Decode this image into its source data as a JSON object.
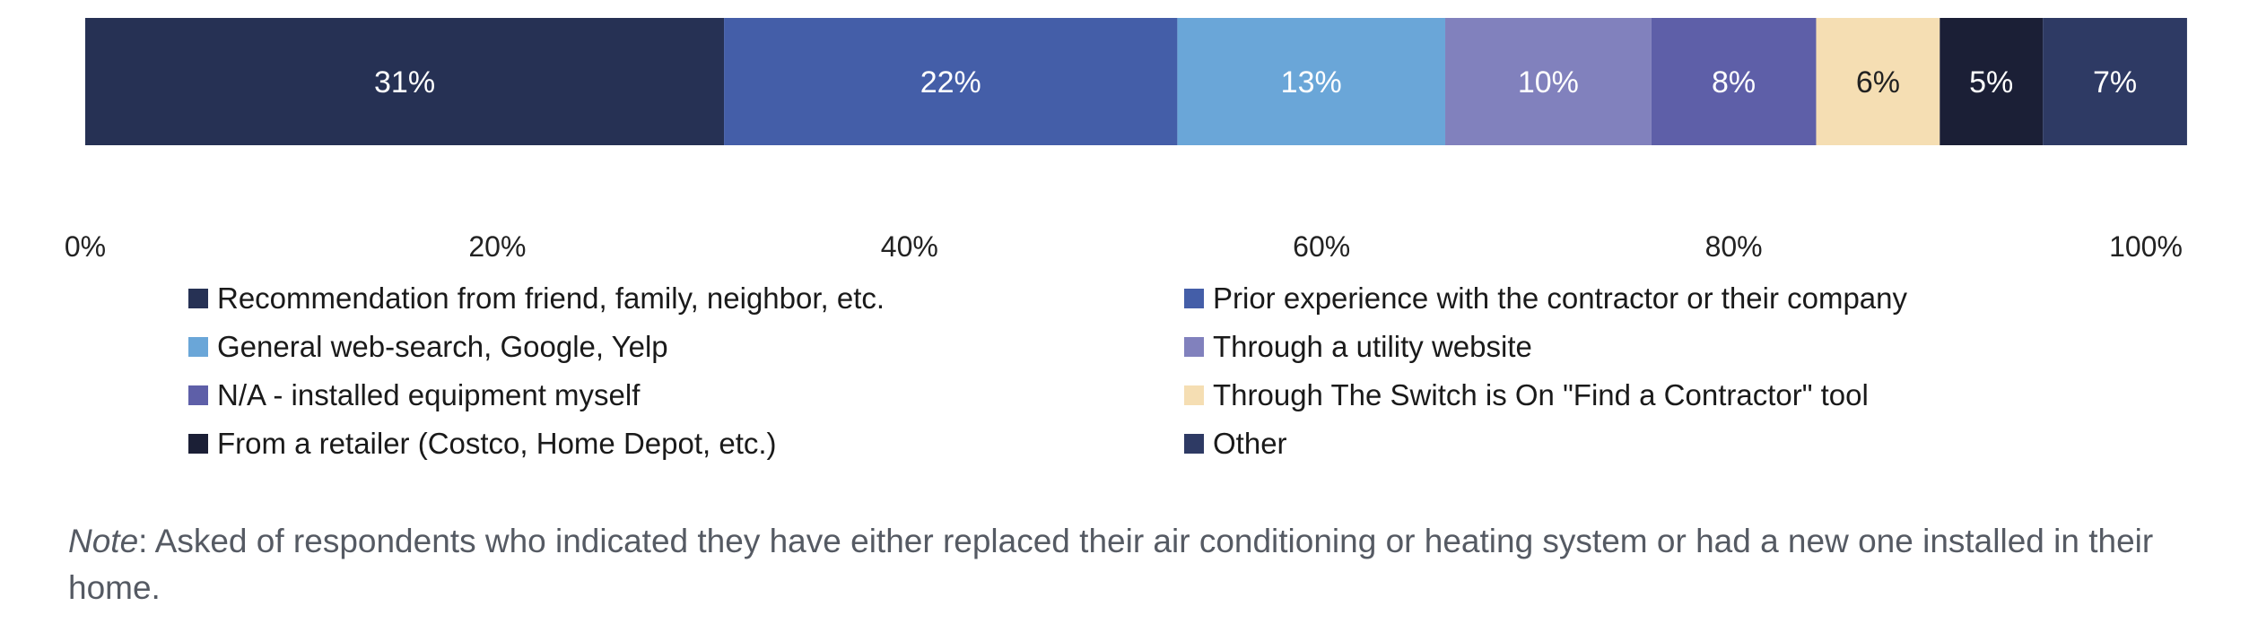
{
  "chart_data": {
    "type": "bar",
    "orientation": "horizontal-stacked",
    "categories": [
      ""
    ],
    "series": [
      {
        "name": "Recommendation from friend, family, neighbor, etc.",
        "values": [
          31
        ],
        "label": "31%",
        "color": "#263154"
      },
      {
        "name": "Prior experience with the contractor or their company",
        "values": [
          22
        ],
        "label": "22%",
        "color": "#445ea8"
      },
      {
        "name": "General web-search, Google, Yelp",
        "values": [
          13
        ],
        "label": "13%",
        "color": "#6aa6d8"
      },
      {
        "name": "Through a utility website",
        "values": [
          10
        ],
        "label": "10%",
        "color": "#8181bd"
      },
      {
        "name": "N/A - installed equipment myself",
        "values": [
          8
        ],
        "label": "8%",
        "color": "#5e5fa8"
      },
      {
        "name": "Through The Switch is On \"Find a Contractor\" tool",
        "values": [
          6
        ],
        "label": "6%",
        "color": "#f5deb3"
      },
      {
        "name": "From a retailer (Costco, Home Depot, etc.)",
        "values": [
          5
        ],
        "label": "5%",
        "color": "#1b1f36"
      },
      {
        "name": "Other",
        "values": [
          7
        ],
        "label": "7%",
        "color": "#2e3a64"
      }
    ],
    "xlim": [
      0,
      100
    ],
    "xticks": [
      "0%",
      "20%",
      "40%",
      "60%",
      "80%",
      "100%"
    ],
    "grid": false,
    "legend_position": "bottom"
  },
  "note": {
    "label": "Note",
    "text": ": Asked of respondents who indicated they have either replaced their air conditioning or heating system or had a new one installed in their home."
  }
}
